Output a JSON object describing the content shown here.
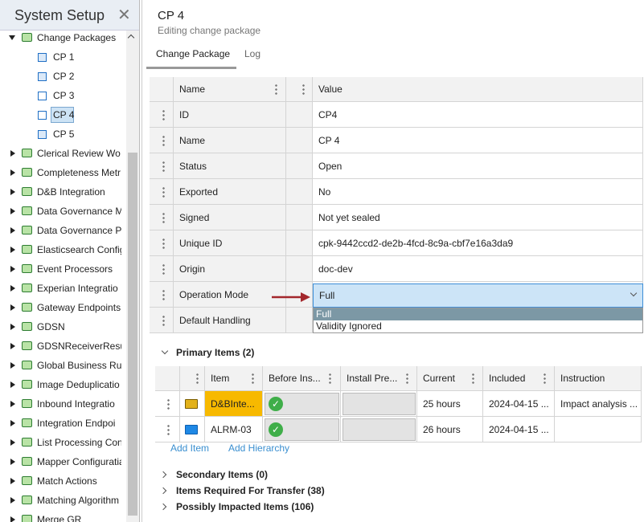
{
  "sidebar": {
    "title": "System Setup",
    "tree": [
      {
        "label": "Change Packages",
        "children": [
          "CP 1",
          "CP 2",
          "CP 3",
          "CP 4",
          "CP 5"
        ]
      },
      {
        "label": "Clerical Review Wo"
      },
      {
        "label": "Completeness Metr"
      },
      {
        "label": "D&B Integration"
      },
      {
        "label": "Data Governance M"
      },
      {
        "label": "Data Governance P"
      },
      {
        "label": "Elasticsearch Config"
      },
      {
        "label": "Event Processors"
      },
      {
        "label": "Experian Integratio"
      },
      {
        "label": "Gateway Endpoints"
      },
      {
        "label": "GDSN"
      },
      {
        "label": "GDSNReceiverResult"
      },
      {
        "label": "Global Business Rul"
      },
      {
        "label": "Image Deduplicatio"
      },
      {
        "label": "Inbound Integratio"
      },
      {
        "label": "Integration Endpoi"
      },
      {
        "label": "List Processing Con"
      },
      {
        "label": "Mapper Configuratia"
      },
      {
        "label": "Match Actions"
      },
      {
        "label": "Matching Algorithm"
      },
      {
        "label": "Merge GR"
      }
    ]
  },
  "header": {
    "title": "CP 4",
    "subtitle": "Editing change package"
  },
  "tabs": [
    "Change Package",
    "Log"
  ],
  "properties": {
    "columns": [
      "Name",
      "Value"
    ],
    "rows": [
      {
        "name": "ID",
        "value": "CP4"
      },
      {
        "name": "Name",
        "value": "CP 4"
      },
      {
        "name": "Status",
        "value": "Open"
      },
      {
        "name": "Exported",
        "value": "No"
      },
      {
        "name": "Signed",
        "value": "Not yet sealed"
      },
      {
        "name": "Unique ID",
        "value": "cpk-9442ccd2-de2b-4fcd-8c9a-cbf7e16a3da9"
      },
      {
        "name": "Origin",
        "value": "doc-dev"
      },
      {
        "name": "Operation Mode",
        "value": "Full"
      },
      {
        "name": "Default Handling"
      }
    ],
    "dropdown_options": [
      "Full",
      "Validity Ignored"
    ]
  },
  "primary": {
    "title": "Primary Items (2)",
    "columns": [
      "Item",
      "Before Ins...",
      "Install Pre...",
      "Current",
      "Included",
      "Instruction"
    ],
    "rows": [
      {
        "item": "D&BInte...",
        "current": "25 hours",
        "included": "2024-04-15 ...",
        "instruction": "Impact analysis ..."
      },
      {
        "item": "ALRM-03",
        "current": "26 hours",
        "included": "2024-04-15 ..."
      }
    ],
    "actions": [
      "Add Item",
      "Add Hierarchy"
    ]
  },
  "sections": [
    "Secondary Items (0)",
    "Items Required For Transfer (38)",
    "Possibly Impacted Items (106)"
  ]
}
